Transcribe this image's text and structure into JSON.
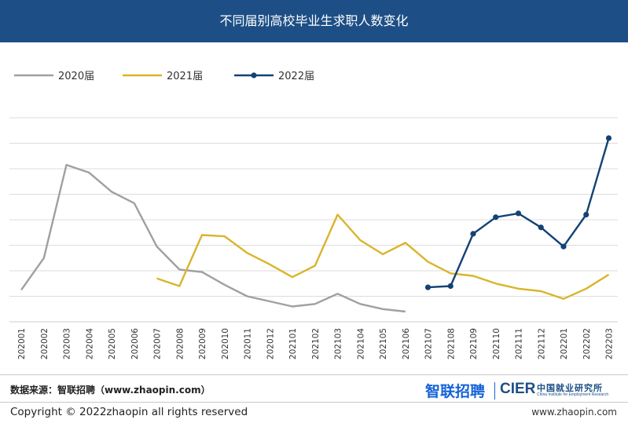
{
  "header": {
    "title": "不同届别高校毕业生求职人数变化"
  },
  "footer": {
    "source": "数据来源：智联招聘（www.zhaopin.com）",
    "copyright": "Copyright ©  2022zhaopin all rights reserved",
    "website": "www.zhaopin.com",
    "logo_zhilian": "智联招聘",
    "logo_cier": "CIER",
    "logo_cier_cn": "中国就业研究所",
    "logo_cier_en": "China Institute for Employment Research"
  },
  "colors": {
    "header_bg": "#1d4f86",
    "series_2020": "#a0a0a0",
    "series_2021": "#d9b52b",
    "series_2022": "#134275",
    "grid": "#dcdcdc"
  },
  "chart_data": {
    "type": "line",
    "title": "不同届别高校毕业生求职人数变化",
    "x": [
      "202001",
      "202002",
      "202003",
      "202004",
      "202005",
      "202006",
      "202007",
      "202008",
      "202009",
      "202010",
      "202011",
      "202012",
      "202101",
      "202102",
      "202103",
      "202104",
      "202105",
      "202106",
      "202107",
      "202108",
      "202109",
      "202110",
      "202111",
      "202112",
      "202201",
      "202202",
      "202203"
    ],
    "y_tick_labels": "none",
    "ylim": [
      0,
      8
    ],
    "grid": true,
    "legend_position": "top-left",
    "series": [
      {
        "name": "2020届",
        "color": "#a0a0a0",
        "marker": false,
        "values": [
          1.25,
          2.5,
          6.15,
          5.85,
          5.1,
          4.65,
          2.95,
          2.05,
          1.95,
          1.45,
          1.0,
          0.8,
          0.6,
          0.7,
          1.1,
          0.7,
          0.5,
          0.4,
          null,
          null,
          null,
          null,
          null,
          null,
          null,
          null,
          null
        ]
      },
      {
        "name": "2021届",
        "color": "#d9b52b",
        "marker": false,
        "values": [
          null,
          null,
          null,
          null,
          null,
          null,
          1.7,
          1.4,
          3.4,
          3.35,
          2.7,
          2.25,
          1.75,
          2.2,
          4.2,
          3.2,
          2.65,
          3.1,
          2.35,
          1.9,
          1.8,
          1.5,
          1.3,
          1.2,
          0.9,
          1.3,
          1.85
        ]
      },
      {
        "name": "2022届",
        "color": "#134275",
        "marker": true,
        "values": [
          null,
          null,
          null,
          null,
          null,
          null,
          null,
          null,
          null,
          null,
          null,
          null,
          null,
          null,
          null,
          null,
          null,
          null,
          1.35,
          1.4,
          3.45,
          4.1,
          4.25,
          3.7,
          2.95,
          4.2,
          7.2
        ]
      }
    ]
  }
}
